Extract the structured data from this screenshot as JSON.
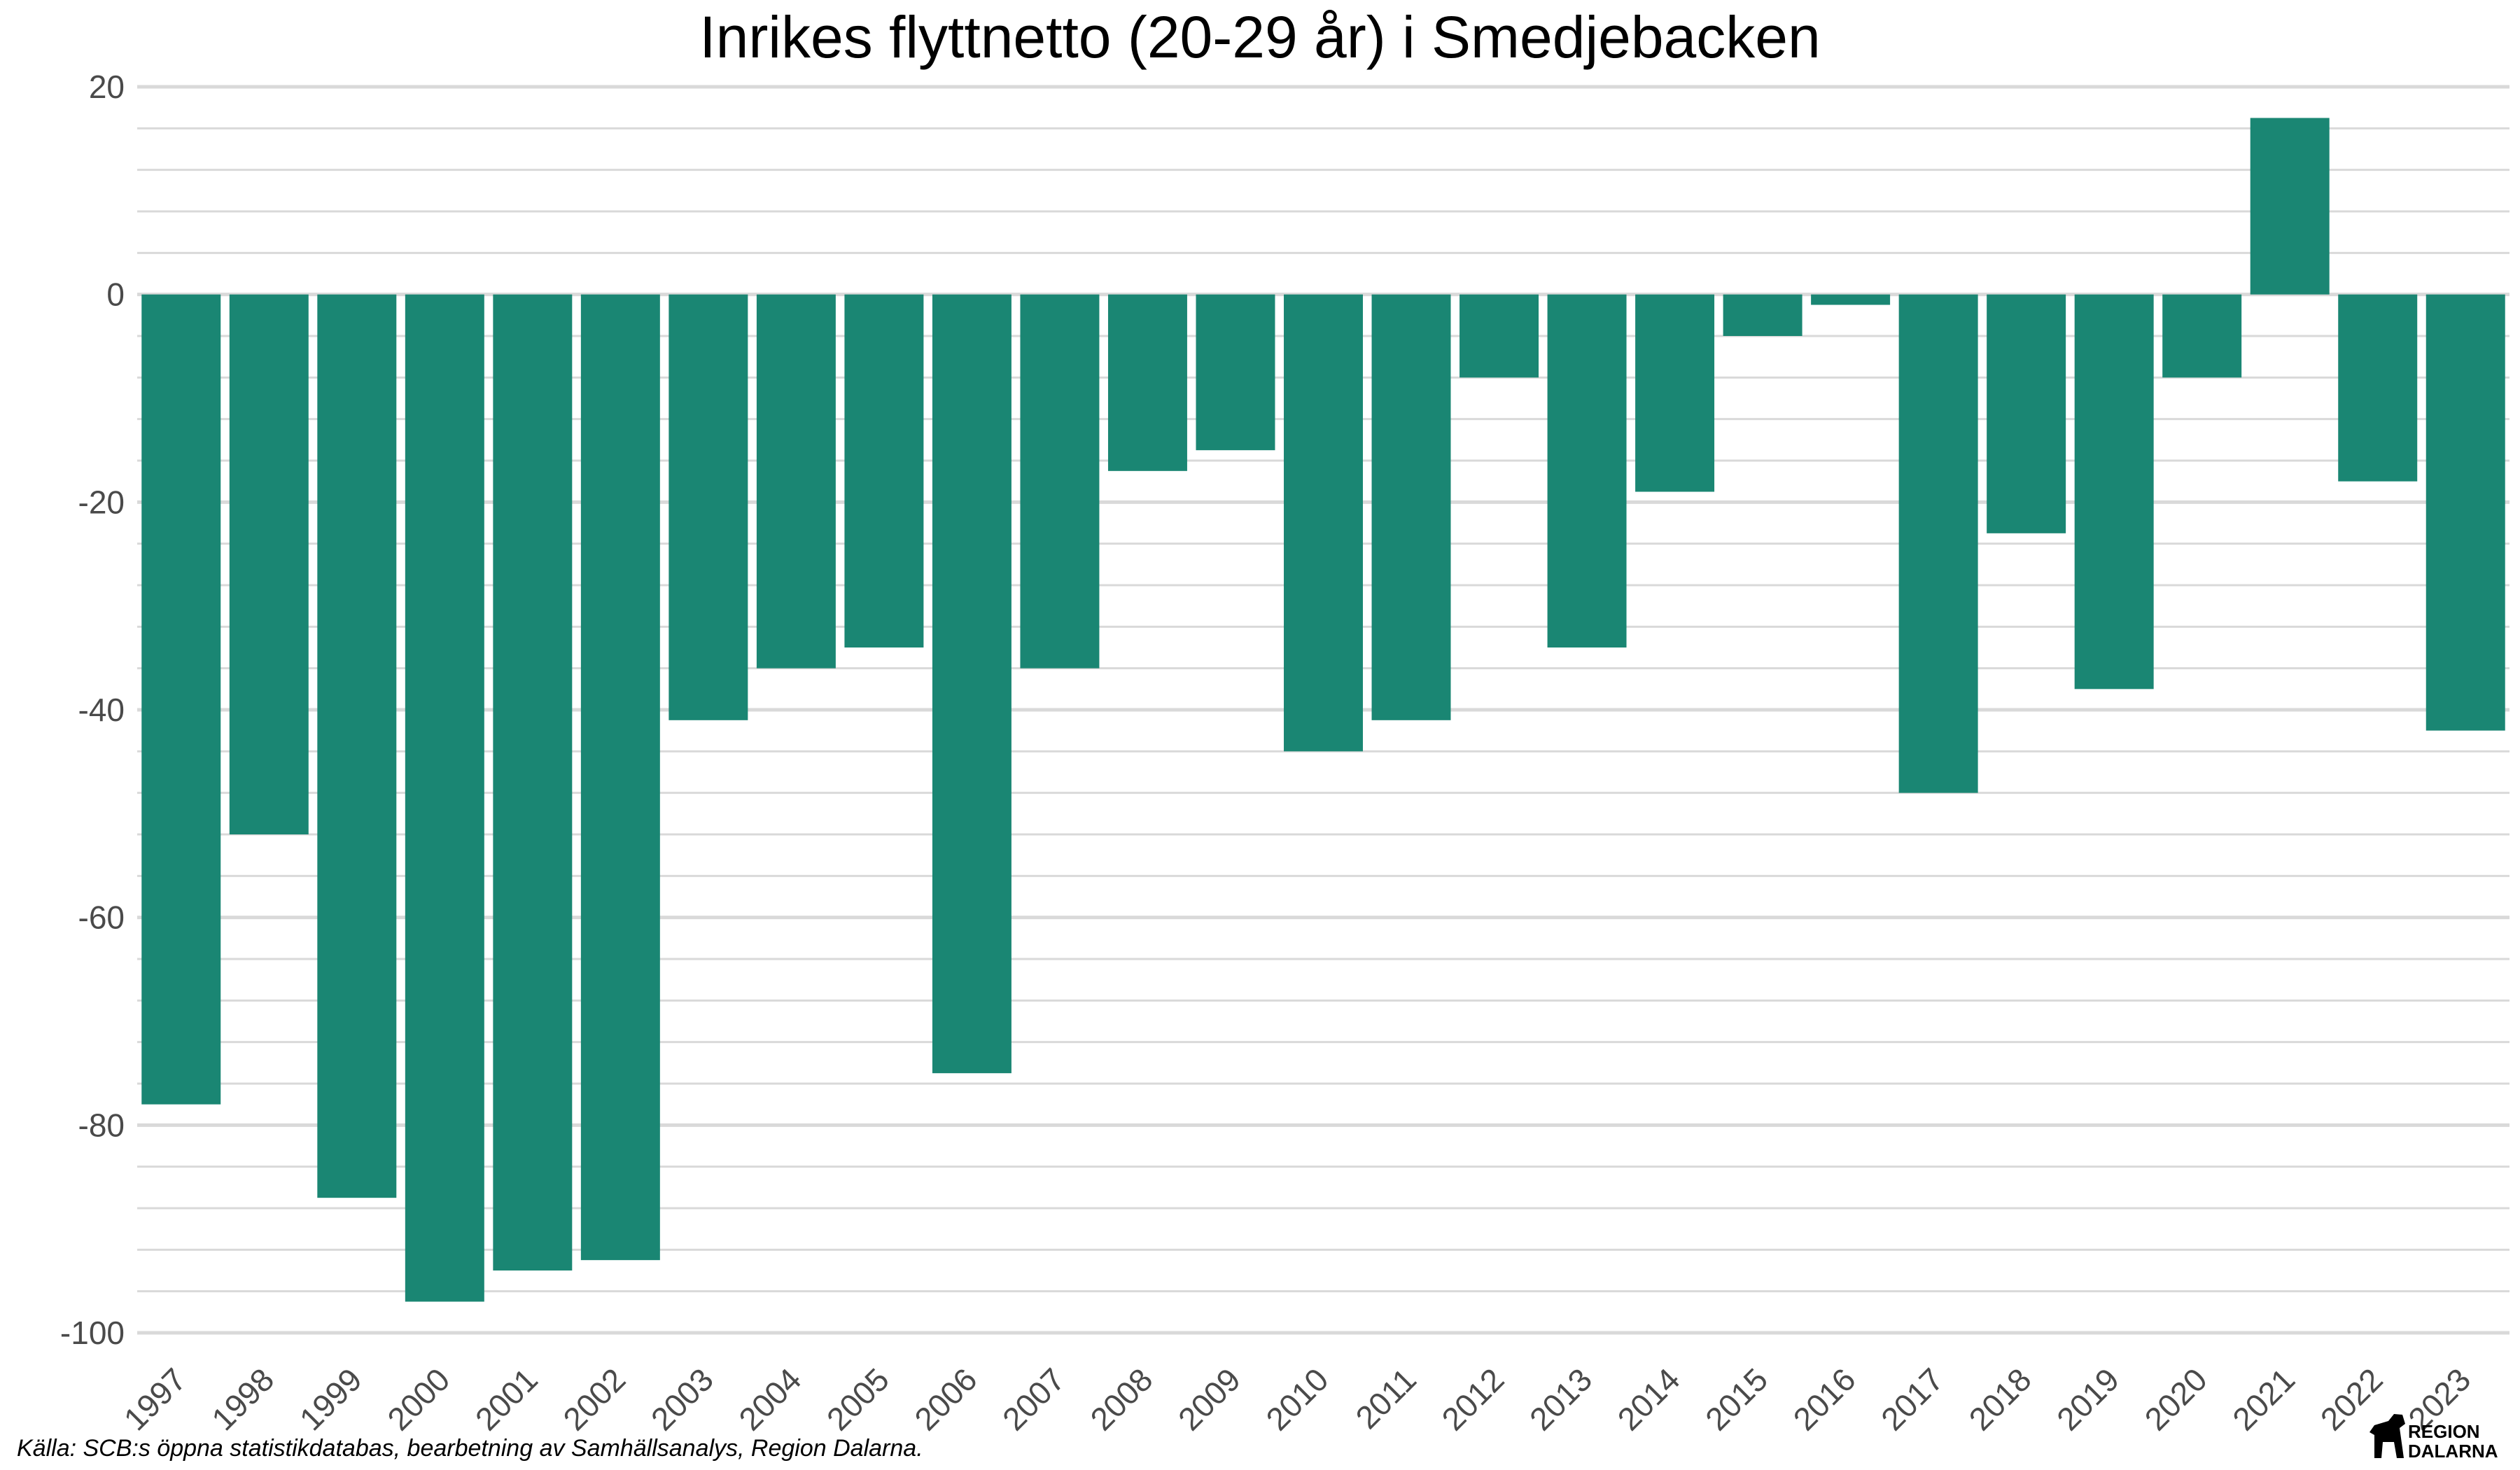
{
  "chart_data": {
    "type": "bar",
    "title": "Inrikes flyttnetto (20-29 år) i Smedjebacken",
    "xlabel": "",
    "ylabel": "",
    "categories": [
      "1997",
      "1998",
      "1999",
      "2000",
      "2001",
      "2002",
      "2003",
      "2004",
      "2005",
      "2006",
      "2007",
      "2008",
      "2009",
      "2010",
      "2011",
      "2012",
      "2013",
      "2014",
      "2015",
      "2016",
      "2017",
      "2018",
      "2019",
      "2020",
      "2021",
      "2022",
      "2023"
    ],
    "values": [
      -78,
      -52,
      -87,
      -97,
      -94,
      -93,
      -41,
      -36,
      -34,
      -75,
      -36,
      -17,
      -15,
      -44,
      -41,
      -8,
      -34,
      -19,
      -4,
      -1,
      -48,
      -23,
      -38,
      -8,
      17,
      -18,
      -42
    ],
    "ylim": [
      -100,
      20
    ],
    "yticks": [
      "20",
      "0",
      "-20",
      "-40",
      "-60",
      "-80",
      "-100"
    ],
    "grid": true,
    "bar_color": "#1a8673",
    "grid_color": "#d9d9d9"
  },
  "footer": {
    "source": "Källa: SCB:s öppna statistikdatabas, bearbetning av Samhällsanalys, Region Dalarna.",
    "logo_line1": "REGION",
    "logo_line2": "DALARNA"
  }
}
